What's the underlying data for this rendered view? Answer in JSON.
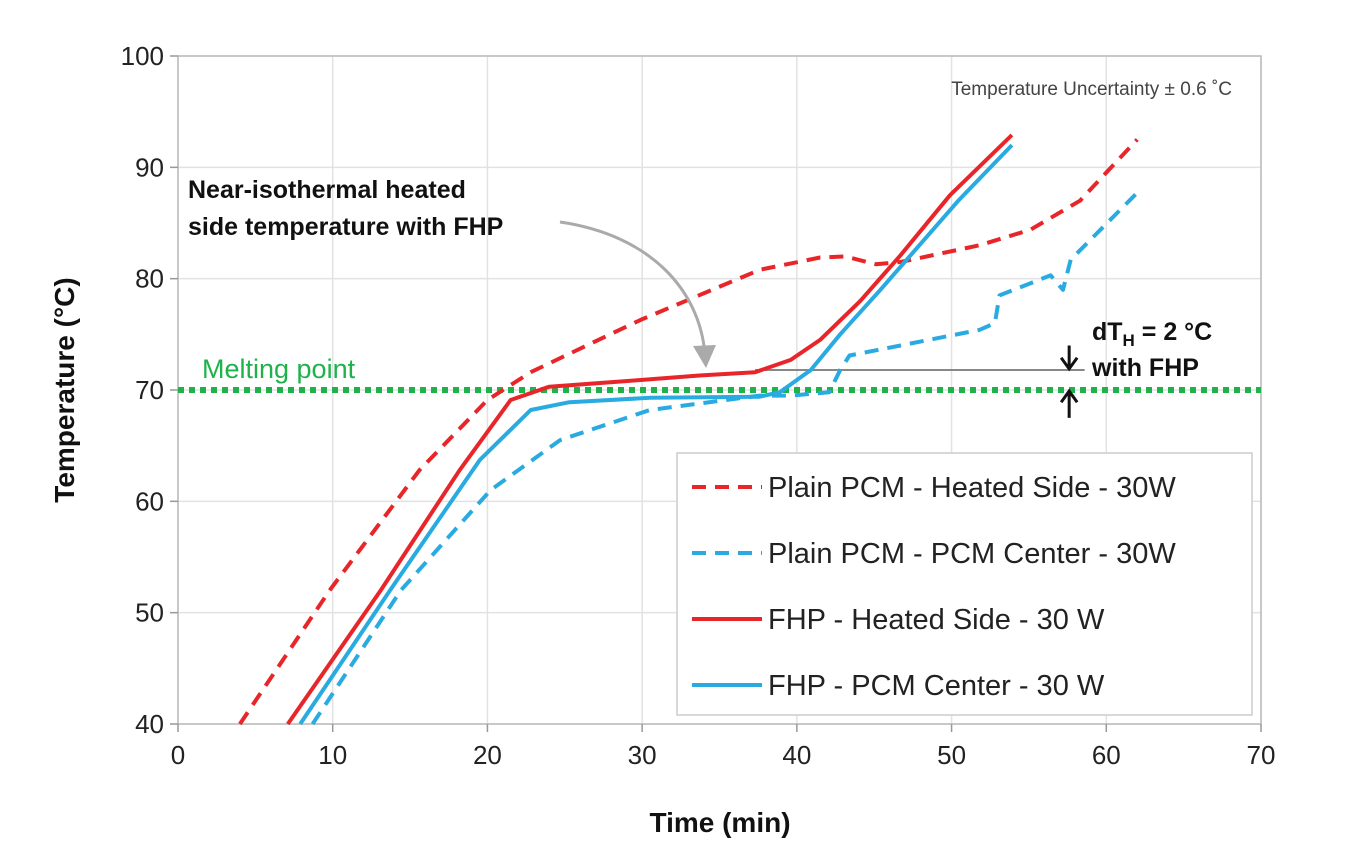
{
  "chart_data": {
    "type": "line",
    "title": "",
    "xlabel": "Time (min)",
    "ylabel": "Temperature (°C)",
    "xlim": [
      0,
      70
    ],
    "ylim": [
      40,
      100
    ],
    "xticks": [
      0,
      10,
      20,
      30,
      40,
      50,
      60,
      70
    ],
    "yticks": [
      40,
      50,
      60,
      70,
      80,
      90,
      100
    ],
    "grid": true,
    "legend_position": "bottom-right",
    "series": [
      {
        "name": "Plain PCM - Heated Side - 30W",
        "color": "#e8262a",
        "style": "dashed",
        "x": [
          4,
          9.8,
          15.6,
          20,
          22.8,
          29.9,
          37.6,
          41.5,
          43.1,
          45.1,
          46.7,
          51.8,
          55.1,
          58.3,
          62
        ],
        "y": [
          40,
          52,
          62.8,
          69.1,
          71.6,
          76.3,
          80.8,
          81.9,
          82,
          81.3,
          81.5,
          83,
          84.4,
          87,
          92.5
        ]
      },
      {
        "name": "Plain PCM - PCM Center - 30W",
        "color": "#29abe2",
        "style": "dashed",
        "x": [
          8.7,
          14.4,
          20.2,
          24.7,
          30.5,
          37.6,
          39.6,
          42.1,
          42.8,
          43.4,
          46.7,
          51.8,
          52.8,
          53.1,
          56.4,
          57.2,
          57.7,
          62.2
        ],
        "y": [
          40,
          52,
          61,
          65.5,
          68.2,
          69.5,
          69.5,
          69.8,
          71.8,
          73.1,
          74,
          75.4,
          76,
          78.5,
          80.3,
          79,
          81.7,
          88
        ]
      },
      {
        "name": "FHP - Heated Side - 30 W",
        "color": "#e8262a",
        "style": "solid",
        "x": [
          7.1,
          13.1,
          18.2,
          21.5,
          24,
          29.9,
          33.7,
          37.3,
          39.6,
          41.5,
          44.1,
          46.7,
          49.9,
          53.9
        ],
        "y": [
          40,
          52,
          62.8,
          69.1,
          70.3,
          70.9,
          71.3,
          71.6,
          72.7,
          74.5,
          78,
          82.1,
          87.5,
          92.9
        ]
      },
      {
        "name": "FHP - PCM Center - 30 W",
        "color": "#29abe2",
        "style": "solid",
        "x": [
          7.9,
          13.7,
          19.5,
          22.8,
          25.3,
          30.5,
          37.6,
          38.9,
          40.2,
          40.9,
          42.8,
          45.4,
          50.5,
          53.9
        ],
        "y": [
          40,
          52,
          63.7,
          68.2,
          68.9,
          69.3,
          69.4,
          69.8,
          71.1,
          71.8,
          75,
          79,
          87.1,
          92
        ]
      }
    ],
    "reference_lines": [
      {
        "label": "Melting point",
        "y": 70,
        "color": "#1fb24a",
        "style": "dotted"
      },
      {
        "y": 71.8,
        "x": [
          37.3,
          58.6
        ],
        "color": "#888888"
      }
    ],
    "annotations": {
      "uncertainty": "Temperature Uncertainty ± 0.6 ˚C",
      "isothermal_line1": "Near-isothermal heated",
      "isothermal_line2": "side temperature with FHP",
      "dt_prefix": "dT",
      "dt_sub": "H",
      "dt_suffix": " = 2 °C",
      "dt_line2": "with FHP",
      "dt_x": 57.6
    }
  }
}
